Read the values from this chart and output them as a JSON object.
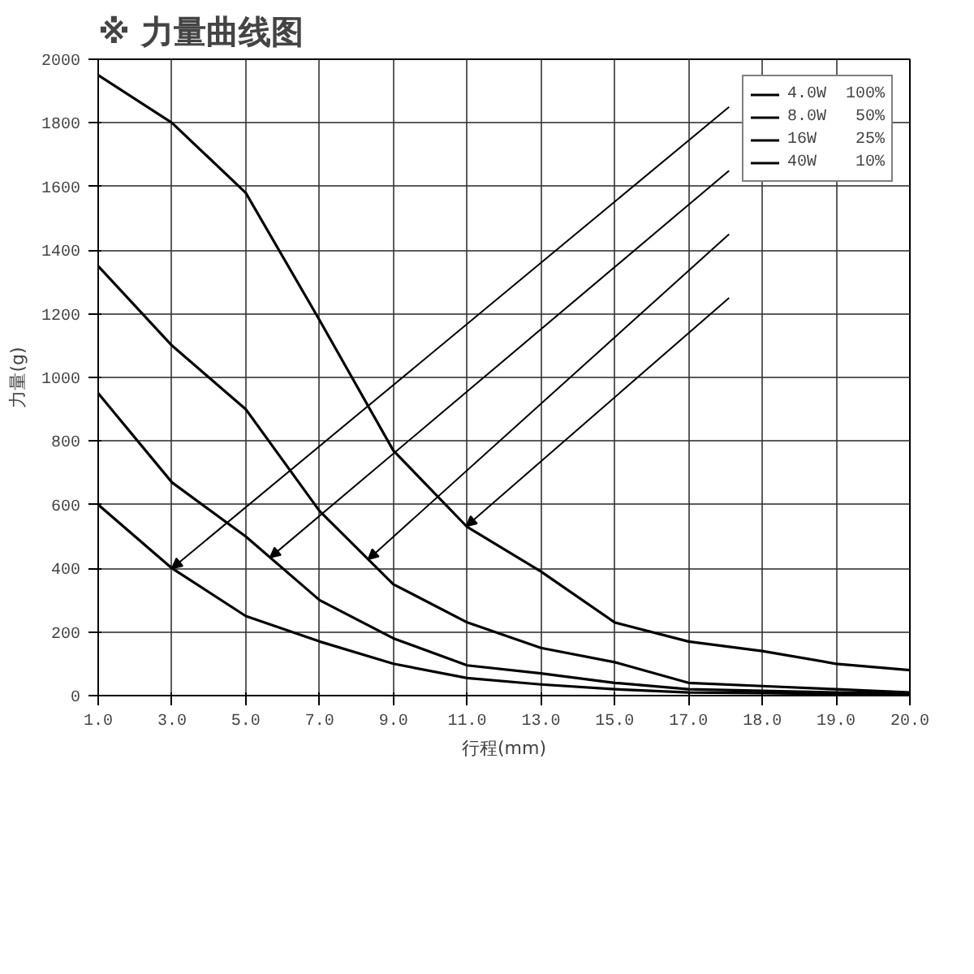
{
  "chart_data": {
    "type": "line",
    "title": "※ 力量曲线图",
    "xlabel": "行程(mm)",
    "ylabel": "力量(g)",
    "categories": [
      "1.0",
      "3.0",
      "5.0",
      "7.0",
      "9.0",
      "11.0",
      "13.0",
      "15.0",
      "17.0",
      "18.0",
      "19.0",
      "20.0"
    ],
    "series": [
      {
        "name": "4.0W  100%",
        "color": "#000000",
        "values": [
          600,
          400,
          250,
          170,
          100,
          55,
          35,
          20,
          10,
          8,
          5,
          5
        ]
      },
      {
        "name": "8.0W   50%",
        "color": "#000000",
        "values": [
          950,
          670,
          500,
          300,
          180,
          95,
          70,
          40,
          20,
          15,
          10,
          8
        ]
      },
      {
        "name": "16W    25%",
        "color": "#000000",
        "values": [
          1350,
          1100,
          900,
          580,
          350,
          230,
          150,
          105,
          40,
          30,
          20,
          10
        ]
      },
      {
        "name": "40W    10%",
        "color": "#000000",
        "values": [
          1950,
          1800,
          1580,
          1180,
          770,
          530,
          390,
          230,
          170,
          140,
          100,
          80
        ]
      }
    ],
    "ylim": [
      0,
      2000
    ],
    "yticks": [
      0,
      200,
      400,
      600,
      800,
      1000,
      1200,
      1400,
      1600,
      1800,
      2000
    ],
    "grid": true,
    "legend": "top right",
    "marker": "none",
    "line_style": "solid"
  }
}
